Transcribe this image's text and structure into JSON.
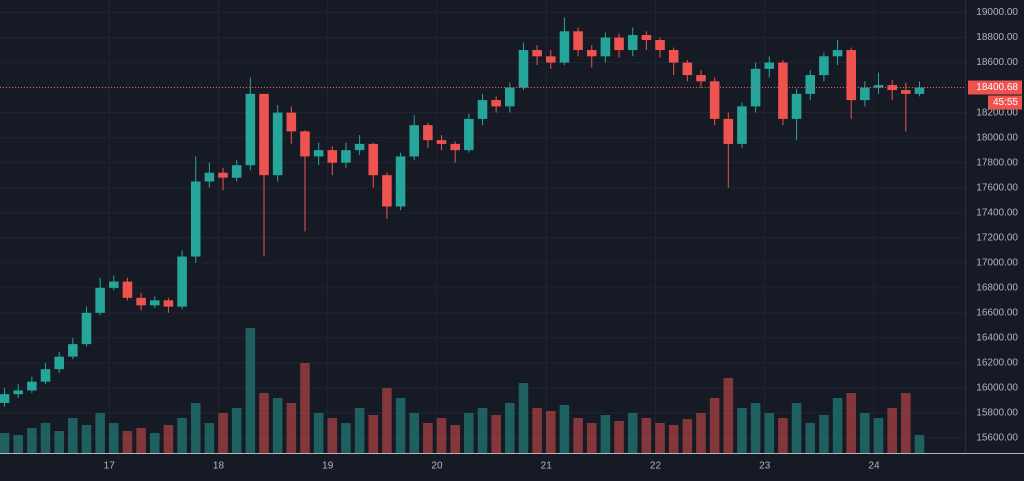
{
  "chart_data": {
    "type": "candlestick",
    "x": [
      1,
      4,
      7,
      10,
      13,
      16,
      19,
      22,
      25,
      28,
      31,
      34,
      37,
      40,
      43,
      46,
      49,
      52,
      55,
      58,
      61,
      64,
      67,
      70,
      73,
      76,
      79,
      82,
      85,
      88,
      91,
      94,
      97,
      100,
      103,
      106,
      109,
      112,
      115,
      118,
      121,
      124,
      127,
      130,
      133,
      136,
      139,
      142,
      145,
      148,
      151,
      154,
      157,
      160,
      163,
      166,
      169,
      172,
      175,
      178,
      181,
      184,
      187,
      190,
      193,
      196,
      199,
      202
    ],
    "open": [
      15880,
      15950,
      15980,
      16050,
      16150,
      16250,
      16350,
      16600,
      16800,
      16850,
      16720,
      16660,
      16700,
      16650,
      17050,
      17650,
      17720,
      17680,
      17780,
      18350,
      17700,
      18200,
      18050,
      17850,
      17900,
      17800,
      17900,
      17950,
      17700,
      17450,
      17850,
      18100,
      17980,
      17950,
      17900,
      18150,
      18300,
      18250,
      18400,
      18700,
      18650,
      18600,
      18850,
      18700,
      18650,
      18800,
      18700,
      18820,
      18780,
      18700,
      18600,
      18500,
      18450,
      18150,
      17950,
      18250,
      18550,
      18600,
      18150,
      18350,
      18500,
      18650,
      18700,
      18300,
      18400,
      18420,
      18380,
      18350
    ],
    "high": [
      16000,
      16030,
      16090,
      16200,
      16290,
      16400,
      16650,
      16880,
      16900,
      16880,
      16760,
      16730,
      16720,
      17100,
      17850,
      17800,
      17760,
      17820,
      18480,
      18350,
      18260,
      18250,
      18060,
      17960,
      17930,
      17960,
      18020,
      17960,
      17720,
      17880,
      18180,
      18120,
      18020,
      17970,
      18190,
      18350,
      18330,
      18440,
      18760,
      18740,
      18700,
      18960,
      18880,
      18740,
      18840,
      18830,
      18880,
      18850,
      18800,
      18720,
      18620,
      18540,
      18480,
      18200,
      18280,
      18600,
      18650,
      18620,
      18390,
      18540,
      18680,
      18780,
      18720,
      18450,
      18520,
      18460,
      18440,
      18450
    ],
    "low": [
      15850,
      15920,
      15960,
      16030,
      16120,
      16230,
      16330,
      16580,
      16780,
      16700,
      16620,
      16640,
      16600,
      16630,
      17000,
      17600,
      17580,
      17650,
      17740,
      17050,
      17650,
      17950,
      17250,
      17780,
      17700,
      17760,
      17860,
      17600,
      17350,
      17420,
      17820,
      17920,
      17900,
      17800,
      17880,
      18100,
      18200,
      18200,
      18380,
      18580,
      18550,
      18580,
      18650,
      18560,
      18600,
      18640,
      18650,
      18700,
      18640,
      18500,
      18450,
      18400,
      18100,
      17600,
      17920,
      18200,
      18480,
      18100,
      17980,
      18300,
      18450,
      18580,
      18150,
      18250,
      18350,
      18300,
      18050,
      18330
    ],
    "close": [
      15950,
      15980,
      16050,
      16150,
      16250,
      16350,
      16600,
      16800,
      16850,
      16720,
      16660,
      16700,
      16650,
      17050,
      17650,
      17720,
      17680,
      17780,
      18350,
      17700,
      18200,
      18050,
      17850,
      17900,
      17800,
      17900,
      17950,
      17700,
      17450,
      17850,
      18100,
      17980,
      17950,
      17900,
      18150,
      18300,
      18250,
      18400,
      18700,
      18650,
      18600,
      18850,
      18700,
      18650,
      18800,
      18700,
      18820,
      18780,
      18700,
      18600,
      18500,
      18450,
      18150,
      17950,
      18250,
      18550,
      18600,
      18150,
      18350,
      18500,
      18650,
      18700,
      18300,
      18400,
      18420,
      18380,
      18350,
      18400
    ],
    "volume": [
      20,
      18,
      25,
      30,
      22,
      35,
      28,
      40,
      30,
      22,
      25,
      20,
      28,
      35,
      50,
      30,
      40,
      45,
      125,
      60,
      55,
      50,
      90,
      40,
      35,
      30,
      45,
      38,
      65,
      55,
      40,
      30,
      35,
      28,
      40,
      45,
      38,
      50,
      70,
      45,
      42,
      48,
      35,
      30,
      38,
      32,
      40,
      35,
      30,
      28,
      34,
      40,
      55,
      75,
      45,
      50,
      40,
      35,
      50,
      30,
      38,
      55,
      60,
      40,
      35,
      45,
      60,
      18
    ],
    "up_color": "#26a69a",
    "down_color": "#ef5350",
    "xlim": [
      0,
      212
    ],
    "xticks": [
      {
        "value": 24,
        "label": "17"
      },
      {
        "value": 48,
        "label": "18"
      },
      {
        "value": 72,
        "label": "19"
      },
      {
        "value": 96,
        "label": "20"
      },
      {
        "value": 120,
        "label": "21"
      },
      {
        "value": 144,
        "label": "22"
      },
      {
        "value": 168,
        "label": "23"
      },
      {
        "value": 192,
        "label": "24"
      }
    ],
    "ylim": [
      15480,
      19100
    ],
    "yticks": [
      {
        "value": 15600,
        "label": "15600.00"
      },
      {
        "value": 15800,
        "label": "15800.00"
      },
      {
        "value": 16000,
        "label": "16000.00"
      },
      {
        "value": 16200,
        "label": "16200.00"
      },
      {
        "value": 16400,
        "label": "16400.00"
      },
      {
        "value": 16600,
        "label": "16600.00"
      },
      {
        "value": 16800,
        "label": "16800.00"
      },
      {
        "value": 17000,
        "label": "17000.00"
      },
      {
        "value": 17200,
        "label": "17200.00"
      },
      {
        "value": 17400,
        "label": "17400.00"
      },
      {
        "value": 17600,
        "label": "17600.00"
      },
      {
        "value": 17800,
        "label": "17800.00"
      },
      {
        "value": 18000,
        "label": "18000.00"
      },
      {
        "value": 18200,
        "label": "18200.00"
      },
      {
        "value": 18400,
        "label": "18400.00"
      },
      {
        "value": 18600,
        "label": "18600.00"
      },
      {
        "value": 18800,
        "label": "18800.00"
      },
      {
        "value": 19000,
        "label": "19000.00"
      }
    ],
    "grid": true,
    "last_price": 18400.68,
    "countdown": "45:55"
  }
}
